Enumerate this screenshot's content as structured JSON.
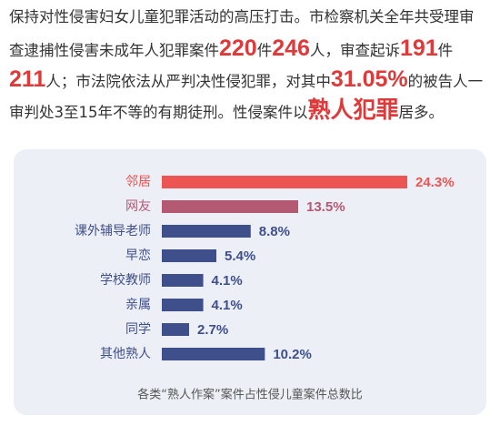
{
  "intro": {
    "lines": [
      [
        {
          "text": "保持对性侵害妇女儿童犯罪活动的高压打击。市检察机关全年共受理审",
          "emphasis": false
        }
      ],
      [
        {
          "text": "查逮捕性侵害未成年人犯罪案件",
          "emphasis": false
        },
        {
          "text": "220",
          "emphasis": true
        },
        {
          "text": "件",
          "emphasis": false
        },
        {
          "text": "246",
          "emphasis": true
        },
        {
          "text": "人，审查起诉",
          "emphasis": false
        },
        {
          "text": "191",
          "emphasis": true
        },
        {
          "text": "件",
          "emphasis": false
        }
      ],
      [
        {
          "text": "211",
          "emphasis": true
        },
        {
          "text": "人；市法院依法从严判决性侵犯罪，对其中",
          "emphasis": false
        },
        {
          "text": "31.05%",
          "emphasis": true
        },
        {
          "text": "的被告人一",
          "emphasis": false
        }
      ],
      [
        {
          "text": "审判处3至15年不等的有期徒刑。性侵案件以",
          "emphasis": false
        },
        {
          "text": "熟人犯罪",
          "emphasis": true
        },
        {
          "text": "居多。",
          "emphasis": false
        }
      ]
    ],
    "emphasis_color": "#e0393a"
  },
  "chart_data": {
    "type": "bar",
    "orientation": "horizontal",
    "title": "各类“熟人作案”案件占性侵儿童案件总数比",
    "categories": [
      "邻居",
      "网友",
      "课外辅导老师",
      "早恋",
      "学校教师",
      "亲属",
      "同学",
      "其他熟人"
    ],
    "values": [
      24.3,
      13.5,
      8.8,
      5.4,
      4.1,
      4.1,
      2.7,
      10.2
    ],
    "value_labels": [
      "24.3%",
      "13.5%",
      "8.8%",
      "5.4%",
      "4.1%",
      "4.1%",
      "2.7%",
      "10.2%"
    ],
    "colors": [
      "#ec5553",
      "#b35a72",
      "#3f4f8c",
      "#3f4f8c",
      "#3f4f8c",
      "#3f4f8c",
      "#3f4f8c",
      "#3f4f8c"
    ]
  }
}
